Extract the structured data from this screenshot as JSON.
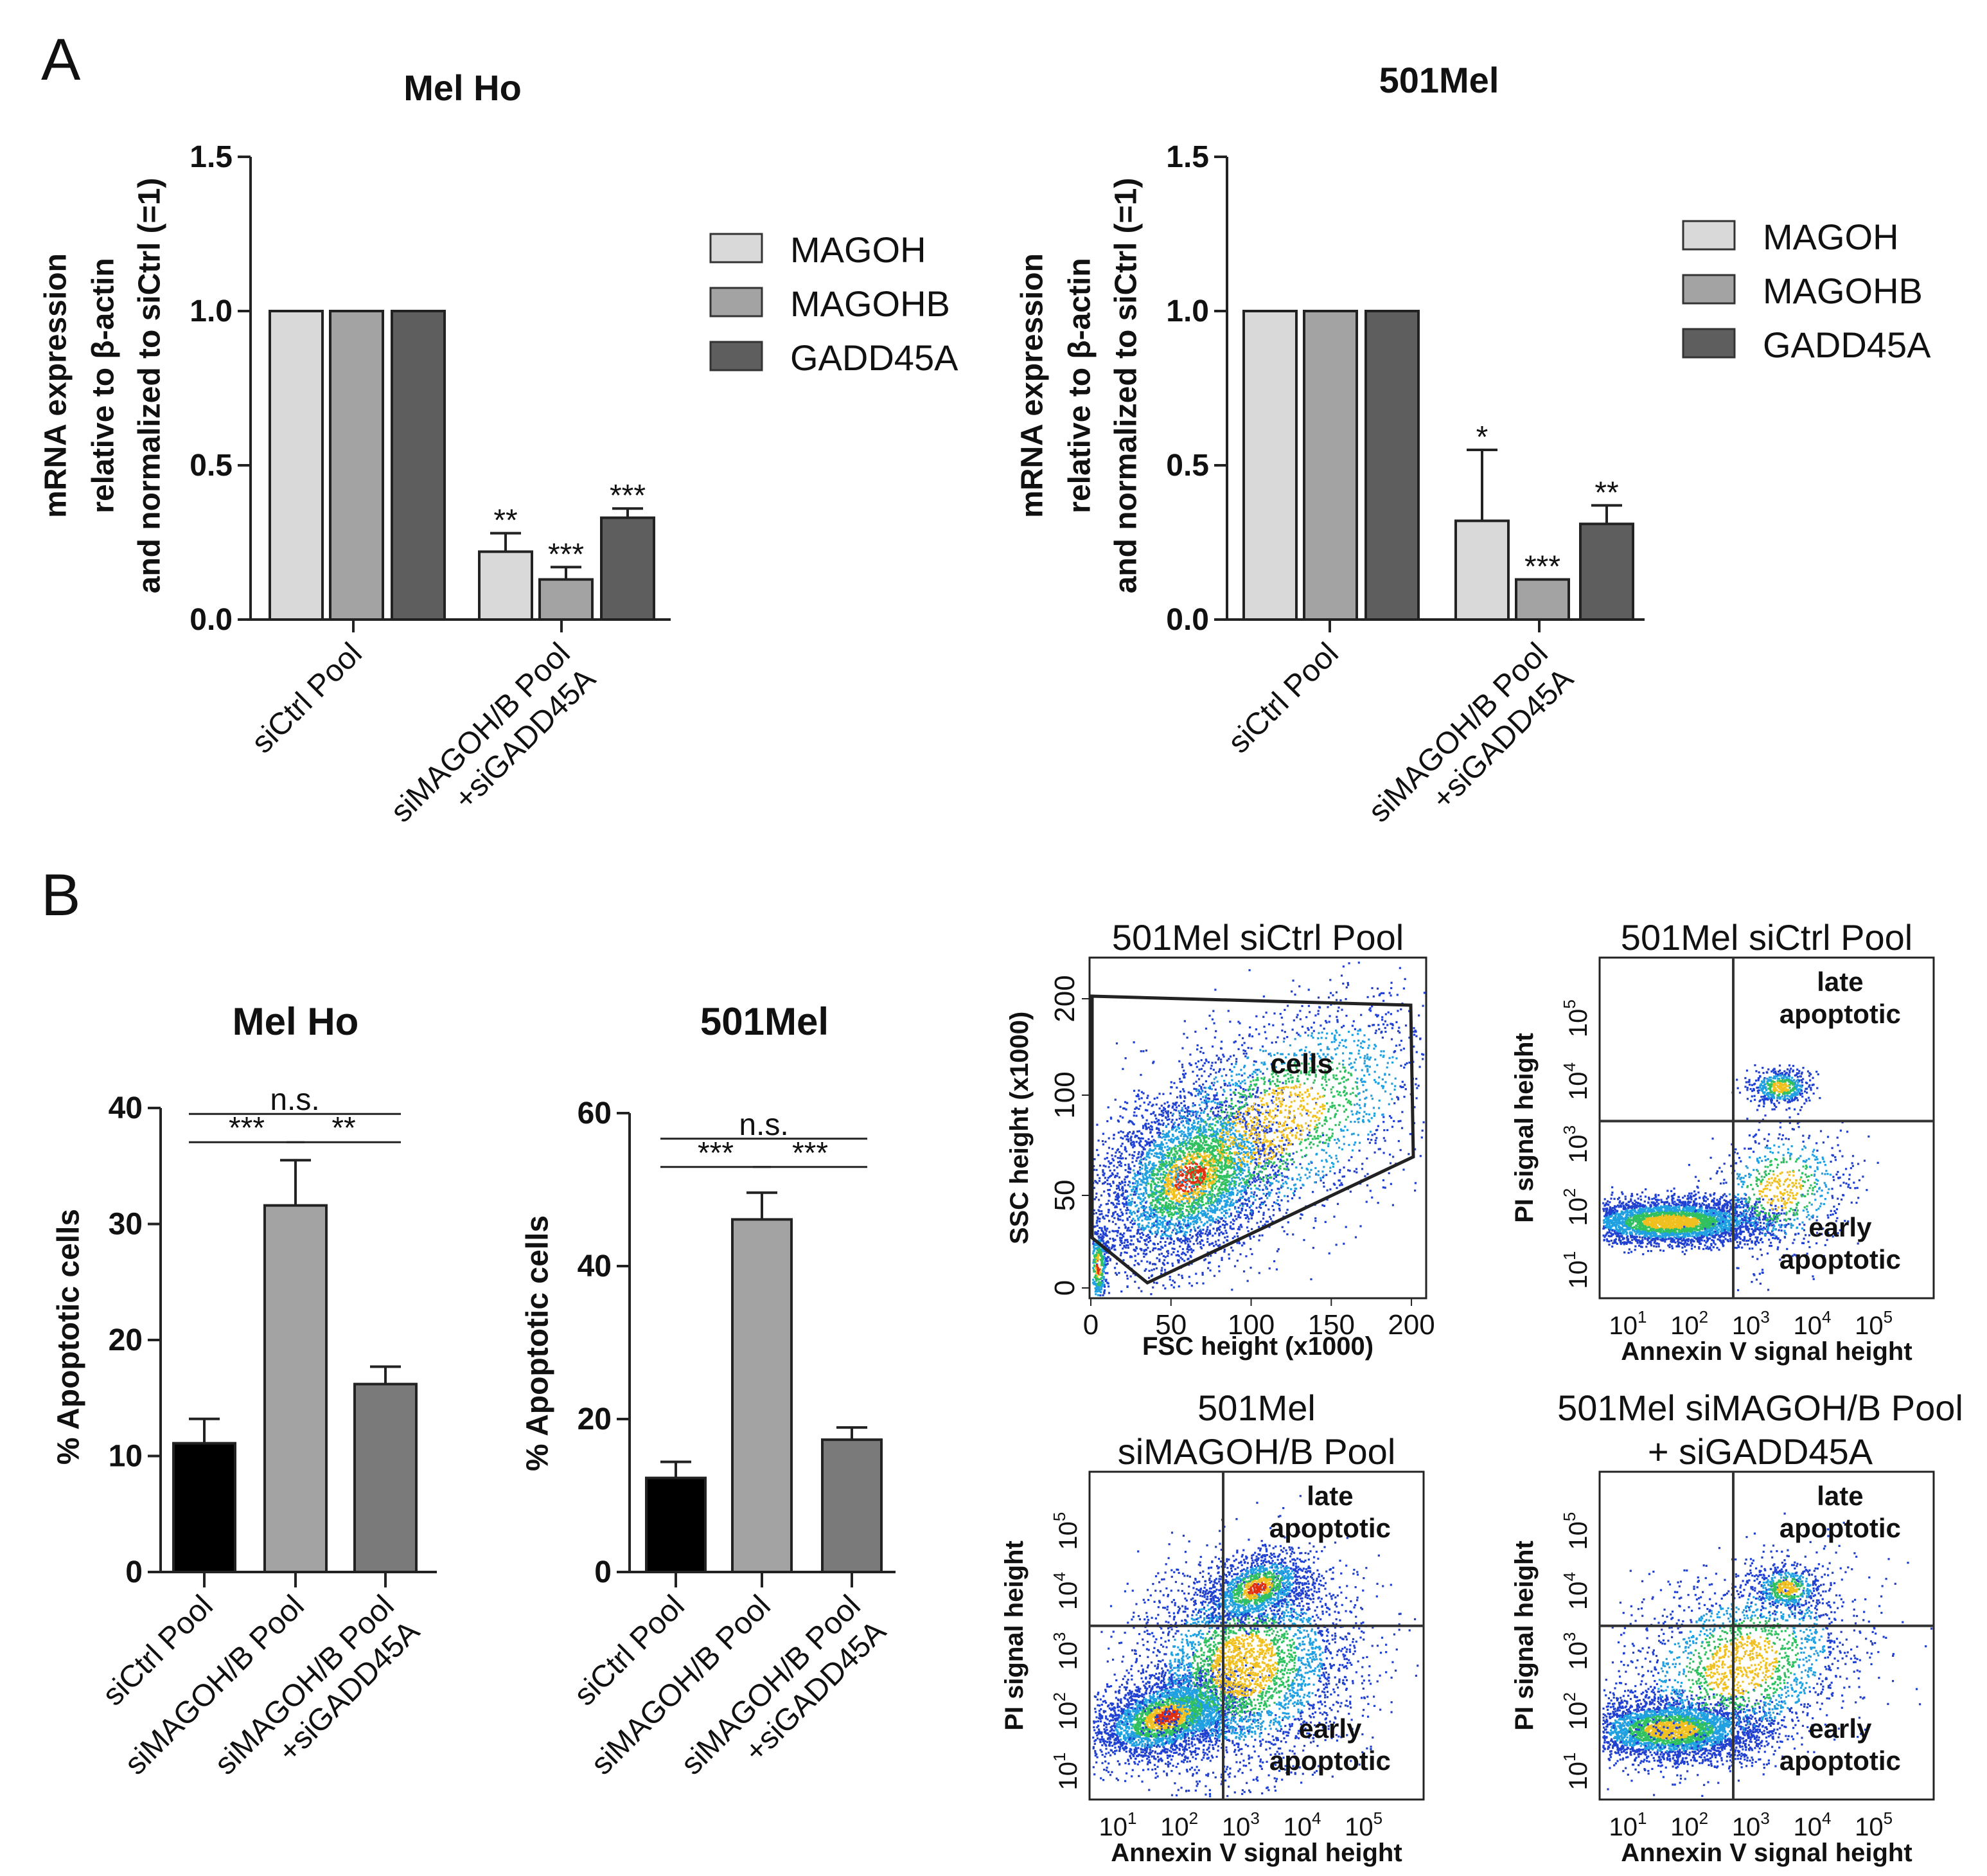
{
  "panel_labels": [
    "A",
    "B"
  ],
  "chart_data": [
    {
      "id": "a-melho",
      "type": "bar",
      "title": "Mel Ho",
      "ylabel": [
        "mRNA expression",
        "relative to β-actin",
        "and normalized to siCtrl (=1)"
      ],
      "ylim": [
        0,
        1.5
      ],
      "yticks": [
        "0.0",
        "0.5",
        "1.0",
        "1.5"
      ],
      "categories": [
        "siCtrl Pool",
        [
          "siMAGOH/B Pool",
          "+siGADD45A"
        ]
      ],
      "series": [
        {
          "name": "MAGOH",
          "color": "#d9d9d9",
          "values": [
            1.0,
            0.22
          ],
          "errors": [
            0,
            0.06
          ],
          "sig": [
            "",
            "**"
          ]
        },
        {
          "name": "MAGOHB",
          "color": "#a3a3a3",
          "values": [
            1.0,
            0.13
          ],
          "errors": [
            0,
            0.04
          ],
          "sig": [
            "",
            "***"
          ]
        },
        {
          "name": "GADD45A",
          "color": "#5e5e5e",
          "values": [
            1.0,
            0.33
          ],
          "errors": [
            0,
            0.03
          ],
          "sig": [
            "",
            "***"
          ]
        }
      ],
      "legend": "right"
    },
    {
      "id": "a-501mel",
      "type": "bar",
      "title": "501Mel",
      "ylabel": [
        "mRNA expression",
        "relative to β-actin",
        "and normalized to siCtrl (=1)"
      ],
      "ylim": [
        0,
        1.5
      ],
      "yticks": [
        "0.0",
        "0.5",
        "1.0",
        "1.5"
      ],
      "categories": [
        "siCtrl Pool",
        [
          "siMAGOH/B Pool",
          "+siGADD45A"
        ]
      ],
      "series": [
        {
          "name": "MAGOH",
          "color": "#d9d9d9",
          "values": [
            1.0,
            0.32
          ],
          "errors": [
            0,
            0.23
          ],
          "sig": [
            "",
            "*"
          ]
        },
        {
          "name": "MAGOHB",
          "color": "#a3a3a3",
          "values": [
            1.0,
            0.13
          ],
          "errors": [
            0,
            0.0
          ],
          "sig": [
            "",
            "***"
          ]
        },
        {
          "name": "GADD45A",
          "color": "#5e5e5e",
          "values": [
            1.0,
            0.31
          ],
          "errors": [
            0,
            0.06
          ],
          "sig": [
            "",
            "**"
          ]
        }
      ],
      "legend": "right"
    },
    {
      "id": "b-melho",
      "type": "bar",
      "title": "Mel Ho",
      "ylabel": [
        "% Apoptotic cells"
      ],
      "ylim": [
        0,
        40
      ],
      "yticks": [
        "0",
        "10",
        "20",
        "30",
        "40"
      ],
      "categories": [
        "siCtrl Pool",
        "siMAGOH/B Pool",
        [
          "siMAGOH/B Pool",
          "+siGADD45A"
        ]
      ],
      "values": [
        11.1,
        31.6,
        16.2
      ],
      "errors": [
        2.1,
        3.9,
        1.5
      ],
      "colors": [
        "#000000",
        "#a3a3a3",
        "#7a7a7a"
      ],
      "comparisons": [
        {
          "label": "n.s.",
          "from": 0,
          "to": 2,
          "level": 2
        },
        {
          "label": "***",
          "from": 0,
          "to": 1,
          "level": 1
        },
        {
          "label": "**",
          "from": 1,
          "to": 2,
          "level": 1
        }
      ]
    },
    {
      "id": "b-501mel",
      "type": "bar",
      "title": "501Mel",
      "ylabel": [
        "% Apoptotic cells"
      ],
      "ylim": [
        0,
        60
      ],
      "yticks": [
        "0",
        "20",
        "40",
        "60"
      ],
      "categories": [
        "siCtrl Pool",
        "siMAGOH/B Pool",
        [
          "siMAGOH/B Pool",
          "+siGADD45A"
        ]
      ],
      "values": [
        12.3,
        46.1,
        17.3
      ],
      "errors": [
        2.1,
        3.5,
        1.6
      ],
      "colors": [
        "#000000",
        "#a3a3a3",
        "#7a7a7a"
      ],
      "comparisons": [
        {
          "label": "n.s.",
          "from": 0,
          "to": 2,
          "level": 2
        },
        {
          "label": "***",
          "from": 0,
          "to": 1,
          "level": 1
        },
        {
          "label": "***",
          "from": 1,
          "to": 2,
          "level": 1
        }
      ]
    }
  ],
  "flow_plots": [
    {
      "id": "fsc-ssc",
      "title": [
        "501Mel siCtrl Pool"
      ],
      "xlabel": "FSC height (x1000)",
      "ylabel": "SSC height (x1000)",
      "xticks": [
        "0",
        "50",
        "100",
        "150",
        "200"
      ],
      "yticks": [
        "0",
        "50",
        "100",
        "200"
      ],
      "gate_label": "cells"
    },
    {
      "id": "annexin-ctrl",
      "title": [
        "501Mel siCtrl Pool"
      ],
      "xlabel": "Annexin V signal height",
      "ylabel": "PI signal height",
      "late": [
        "late",
        "apoptotic"
      ],
      "early": [
        "early",
        "apoptotic"
      ]
    },
    {
      "id": "annexin-simagoh",
      "title": [
        "501Mel",
        "siMAGOH/B Pool"
      ],
      "xlabel": "Annexin V signal height",
      "ylabel": "PI signal height",
      "late": [
        "late",
        "apoptotic"
      ],
      "early": [
        "early",
        "apoptotic"
      ]
    },
    {
      "id": "annexin-simagoh-gadd",
      "title": [
        "501Mel siMAGOH/B Pool",
        "+ siGADD45A"
      ],
      "xlabel": "Annexin V signal height",
      "ylabel": "PI signal height",
      "late": [
        "late",
        "apoptotic"
      ],
      "early": [
        "early",
        "apoptotic"
      ]
    }
  ],
  "log_ticks": [
    "1",
    "2",
    "3",
    "4",
    "5"
  ],
  "log_base": "10"
}
